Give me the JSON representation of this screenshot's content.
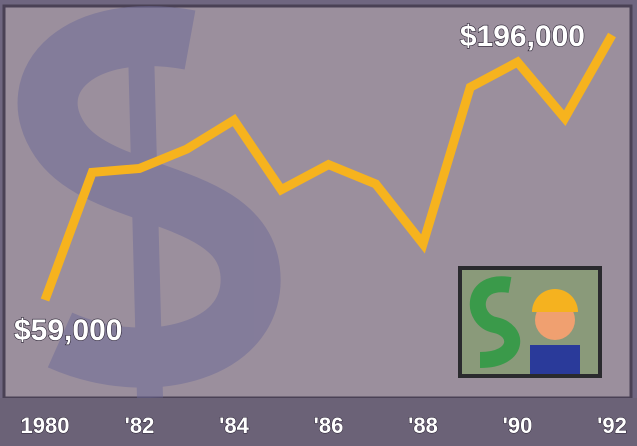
{
  "chart_data": {
    "type": "line",
    "categories": [
      "1980",
      null,
      "'82",
      null,
      "'84",
      null,
      "'86",
      null,
      "'88",
      null,
      "'90",
      null,
      "'92"
    ],
    "series": [
      {
        "color": "#f6b31e",
        "values": [
          59000,
          125000,
          127000,
          137000,
          152000,
          116000,
          129000,
          119000,
          88000,
          169000,
          182000,
          153000,
          196000
        ],
        "value_labels": [
          "$59,000",
          null,
          null,
          null,
          null,
          null,
          null,
          null,
          null,
          null,
          null,
          null,
          "$196,000"
        ]
      }
    ]
  }
}
